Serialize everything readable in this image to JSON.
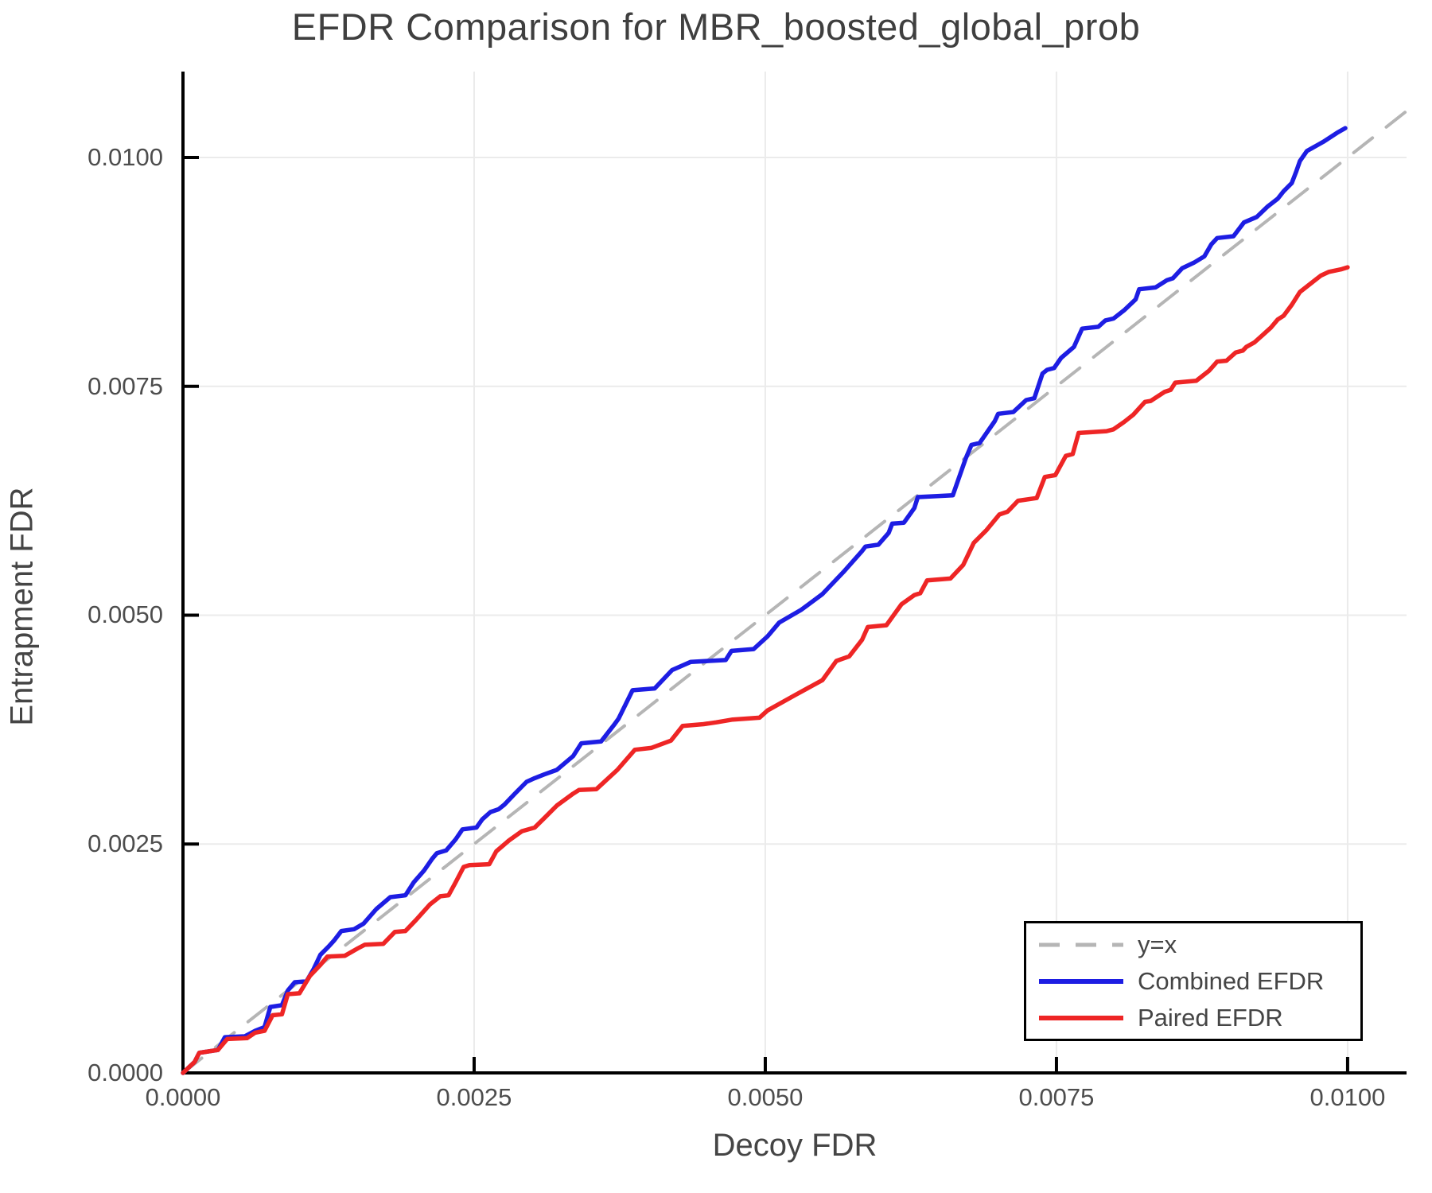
{
  "title": "EFDR Comparison for MBR_boosted_global_prob",
  "legend": {
    "items": [
      {
        "label": "y=x",
        "color": "#b5b5b5",
        "style": "dashed"
      },
      {
        "label": "Combined EFDR",
        "color": "#1d1de3",
        "style": "solid"
      },
      {
        "label": "Paired EFDR",
        "color": "#ee2525",
        "style": "solid"
      }
    ]
  },
  "colors": {
    "background": "#ffffff",
    "spine": "#000000",
    "grid": "#ebebeb",
    "title_text": "#3f3f3f",
    "tick_text": "#4d4d4d",
    "diagonal": "#b5b5b5",
    "combined": "#1d1de3",
    "paired": "#ee2525"
  },
  "chart_data": {
    "type": "line",
    "title": "EFDR Comparison for MBR_boosted_global_prob",
    "xlabel": "Decoy FDR",
    "ylabel": "Entrapment FDR",
    "xlim": [
      0,
      0.010506
    ],
    "ylim": [
      0,
      0.010938
    ],
    "grid": true,
    "legend_position": "lower right",
    "x_ticks": {
      "values": [
        0.0,
        0.0025,
        0.005,
        0.0075,
        0.01
      ],
      "labels": [
        "0.0000",
        "0.0025",
        "0.0050",
        "0.0075",
        "0.0100"
      ]
    },
    "y_ticks": {
      "values": [
        0.0,
        0.0025,
        0.005,
        0.0075,
        0.01
      ],
      "labels": [
        "0.0000",
        "0.0025",
        "0.0050",
        "0.0075",
        "0.0100"
      ]
    },
    "series": [
      {
        "name": "y=x",
        "style": "dashed",
        "color": "#b5b5b5",
        "points": [
          [
            0.0,
            0.0
          ],
          [
            0.0105,
            0.0105
          ]
        ]
      },
      {
        "name": "Combined EFDR",
        "style": "solid",
        "color": "#1d1de3",
        "points": [
          [
            0.0,
            0.0
          ],
          [
            0.0001,
            0.00012
          ],
          [
            0.00014,
            0.00022
          ],
          [
            0.0003,
            0.00025
          ],
          [
            0.00036,
            0.00039
          ],
          [
            0.00053,
            0.0004
          ],
          [
            0.00062,
            0.00046
          ],
          [
            0.0007,
            0.0005
          ],
          [
            0.00075,
            0.00072
          ],
          [
            0.00085,
            0.00074
          ],
          [
            0.0009,
            0.0009
          ],
          [
            0.00096,
            0.00099
          ],
          [
            0.00106,
            0.001
          ],
          [
            0.00112,
            0.00113
          ],
          [
            0.00118,
            0.00129
          ],
          [
            0.00125,
            0.00138
          ],
          [
            0.0013,
            0.00145
          ],
          [
            0.00136,
            0.00155
          ],
          [
            0.00147,
            0.00157
          ],
          [
            0.00155,
            0.00163
          ],
          [
            0.00166,
            0.00179
          ],
          [
            0.00178,
            0.00192
          ],
          [
            0.00191,
            0.00194
          ],
          [
            0.00198,
            0.00208
          ],
          [
            0.00207,
            0.00221
          ],
          [
            0.00214,
            0.00234
          ],
          [
            0.00218,
            0.0024
          ],
          [
            0.00226,
            0.00243
          ],
          [
            0.00234,
            0.00255
          ],
          [
            0.0024,
            0.00266
          ],
          [
            0.00252,
            0.00268
          ],
          [
            0.00257,
            0.00277
          ],
          [
            0.00264,
            0.00285
          ],
          [
            0.00271,
            0.00288
          ],
          [
            0.00276,
            0.00293
          ],
          [
            0.00285,
            0.00305
          ],
          [
            0.00295,
            0.00318
          ],
          [
            0.00302,
            0.00322
          ],
          [
            0.0031,
            0.00326
          ],
          [
            0.00321,
            0.00331
          ],
          [
            0.00335,
            0.00346
          ],
          [
            0.00342,
            0.0036
          ],
          [
            0.00359,
            0.00362
          ],
          [
            0.0037,
            0.0038
          ],
          [
            0.00374,
            0.00387
          ],
          [
            0.00386,
            0.00418
          ],
          [
            0.00405,
            0.0042
          ],
          [
            0.0042,
            0.0044
          ],
          [
            0.00436,
            0.00449
          ],
          [
            0.00466,
            0.00451
          ],
          [
            0.00471,
            0.00461
          ],
          [
            0.0049,
            0.00463
          ],
          [
            0.00502,
            0.00477
          ],
          [
            0.00512,
            0.00492
          ],
          [
            0.00531,
            0.00506
          ],
          [
            0.00549,
            0.00523
          ],
          [
            0.00567,
            0.00547
          ],
          [
            0.00583,
            0.0057
          ],
          [
            0.00586,
            0.00575
          ],
          [
            0.00597,
            0.00577
          ],
          [
            0.00606,
            0.0059
          ],
          [
            0.00609,
            0.006
          ],
          [
            0.00619,
            0.00601
          ],
          [
            0.00628,
            0.00617
          ],
          [
            0.00631,
            0.00629
          ],
          [
            0.00661,
            0.00631
          ],
          [
            0.00672,
            0.00671
          ],
          [
            0.00677,
            0.00686
          ],
          [
            0.00684,
            0.00688
          ],
          [
            0.00697,
            0.00712
          ],
          [
            0.007,
            0.0072
          ],
          [
            0.00713,
            0.00722
          ],
          [
            0.00724,
            0.00735
          ],
          [
            0.00731,
            0.00737
          ],
          [
            0.00738,
            0.00764
          ],
          [
            0.00742,
            0.00768
          ],
          [
            0.00748,
            0.0077
          ],
          [
            0.00754,
            0.00781
          ],
          [
            0.00765,
            0.00793
          ],
          [
            0.00772,
            0.00813
          ],
          [
            0.00786,
            0.00815
          ],
          [
            0.00792,
            0.00822
          ],
          [
            0.00799,
            0.00824
          ],
          [
            0.00808,
            0.00833
          ],
          [
            0.00818,
            0.00845
          ],
          [
            0.00821,
            0.00856
          ],
          [
            0.00835,
            0.00858
          ],
          [
            0.00845,
            0.00866
          ],
          [
            0.0085,
            0.00868
          ],
          [
            0.00858,
            0.00879
          ],
          [
            0.00868,
            0.00885
          ],
          [
            0.00877,
            0.00892
          ],
          [
            0.00883,
            0.00905
          ],
          [
            0.00888,
            0.00912
          ],
          [
            0.00902,
            0.00914
          ],
          [
            0.00911,
            0.00929
          ],
          [
            0.00922,
            0.00935
          ],
          [
            0.00931,
            0.00946
          ],
          [
            0.0094,
            0.00955
          ],
          [
            0.00945,
            0.00963
          ],
          [
            0.00952,
            0.00972
          ],
          [
            0.00956,
            0.00985
          ],
          [
            0.00959,
            0.00996
          ],
          [
            0.00965,
            0.01007
          ],
          [
            0.00979,
            0.01017
          ],
          [
            0.00991,
            0.01027
          ],
          [
            0.00998,
            0.01032
          ]
        ]
      },
      {
        "name": "Paired EFDR",
        "style": "solid",
        "color": "#ee2525",
        "points": [
          [
            0.0,
            0.0
          ],
          [
            0.0001,
            0.00012
          ],
          [
            0.00014,
            0.00022
          ],
          [
            0.0003,
            0.00025
          ],
          [
            0.00038,
            0.00037
          ],
          [
            0.00055,
            0.00038
          ],
          [
            0.00062,
            0.00044
          ],
          [
            0.0007,
            0.00046
          ],
          [
            0.00077,
            0.00063
          ],
          [
            0.00085,
            0.00064
          ],
          [
            0.0009,
            0.00086
          ],
          [
            0.001,
            0.00087
          ],
          [
            0.00109,
            0.00106
          ],
          [
            0.00118,
            0.00118
          ],
          [
            0.00124,
            0.00127
          ],
          [
            0.00139,
            0.00128
          ],
          [
            0.0015,
            0.00136
          ],
          [
            0.00156,
            0.0014
          ],
          [
            0.00172,
            0.00141
          ],
          [
            0.00182,
            0.00154
          ],
          [
            0.00191,
            0.00155
          ],
          [
            0.002,
            0.00167
          ],
          [
            0.00212,
            0.00184
          ],
          [
            0.00221,
            0.00193
          ],
          [
            0.00228,
            0.00194
          ],
          [
            0.00234,
            0.00208
          ],
          [
            0.00241,
            0.00225
          ],
          [
            0.00246,
            0.00227
          ],
          [
            0.00263,
            0.00228
          ],
          [
            0.00269,
            0.00242
          ],
          [
            0.0028,
            0.00254
          ],
          [
            0.00291,
            0.00264
          ],
          [
            0.00302,
            0.00268
          ],
          [
            0.0031,
            0.00278
          ],
          [
            0.00321,
            0.00292
          ],
          [
            0.00335,
            0.00305
          ],
          [
            0.0034,
            0.00309
          ],
          [
            0.00355,
            0.0031
          ],
          [
            0.00373,
            0.00331
          ],
          [
            0.00388,
            0.00353
          ],
          [
            0.00402,
            0.00355
          ],
          [
            0.00419,
            0.00363
          ],
          [
            0.00429,
            0.00379
          ],
          [
            0.00447,
            0.00381
          ],
          [
            0.00458,
            0.00383
          ],
          [
            0.00472,
            0.00386
          ],
          [
            0.00495,
            0.00388
          ],
          [
            0.00502,
            0.00396
          ],
          [
            0.00526,
            0.00413
          ],
          [
            0.00549,
            0.00429
          ],
          [
            0.00561,
            0.0045
          ],
          [
            0.00572,
            0.00455
          ],
          [
            0.00583,
            0.00473
          ],
          [
            0.00588,
            0.00487
          ],
          [
            0.00604,
            0.00489
          ],
          [
            0.00617,
            0.00512
          ],
          [
            0.00628,
            0.00522
          ],
          [
            0.00633,
            0.00524
          ],
          [
            0.00639,
            0.00538
          ],
          [
            0.00659,
            0.0054
          ],
          [
            0.0067,
            0.00555
          ],
          [
            0.00679,
            0.00579
          ],
          [
            0.0069,
            0.00593
          ],
          [
            0.00701,
            0.0061
          ],
          [
            0.00708,
            0.00613
          ],
          [
            0.00717,
            0.00625
          ],
          [
            0.00733,
            0.00628
          ],
          [
            0.0074,
            0.00651
          ],
          [
            0.00749,
            0.00653
          ],
          [
            0.00758,
            0.00674
          ],
          [
            0.00764,
            0.00676
          ],
          [
            0.00769,
            0.00699
          ],
          [
            0.00793,
            0.00701
          ],
          [
            0.00799,
            0.00703
          ],
          [
            0.00808,
            0.00711
          ],
          [
            0.00816,
            0.00719
          ],
          [
            0.00826,
            0.00733
          ],
          [
            0.00831,
            0.00734
          ],
          [
            0.00843,
            0.00744
          ],
          [
            0.00848,
            0.00746
          ],
          [
            0.00852,
            0.00754
          ],
          [
            0.0087,
            0.00756
          ],
          [
            0.00881,
            0.00767
          ],
          [
            0.00888,
            0.00777
          ],
          [
            0.00896,
            0.00778
          ],
          [
            0.00904,
            0.00787
          ],
          [
            0.0091,
            0.00789
          ],
          [
            0.00913,
            0.00793
          ],
          [
            0.0092,
            0.00798
          ],
          [
            0.00927,
            0.00806
          ],
          [
            0.00934,
            0.00814
          ],
          [
            0.0094,
            0.00823
          ],
          [
            0.00945,
            0.00827
          ],
          [
            0.00952,
            0.00839
          ],
          [
            0.00959,
            0.00853
          ],
          [
            0.00968,
            0.00862
          ],
          [
            0.00977,
            0.00871
          ],
          [
            0.00984,
            0.00875
          ],
          [
            0.00995,
            0.00878
          ],
          [
            0.01,
            0.0088
          ]
        ]
      }
    ]
  }
}
